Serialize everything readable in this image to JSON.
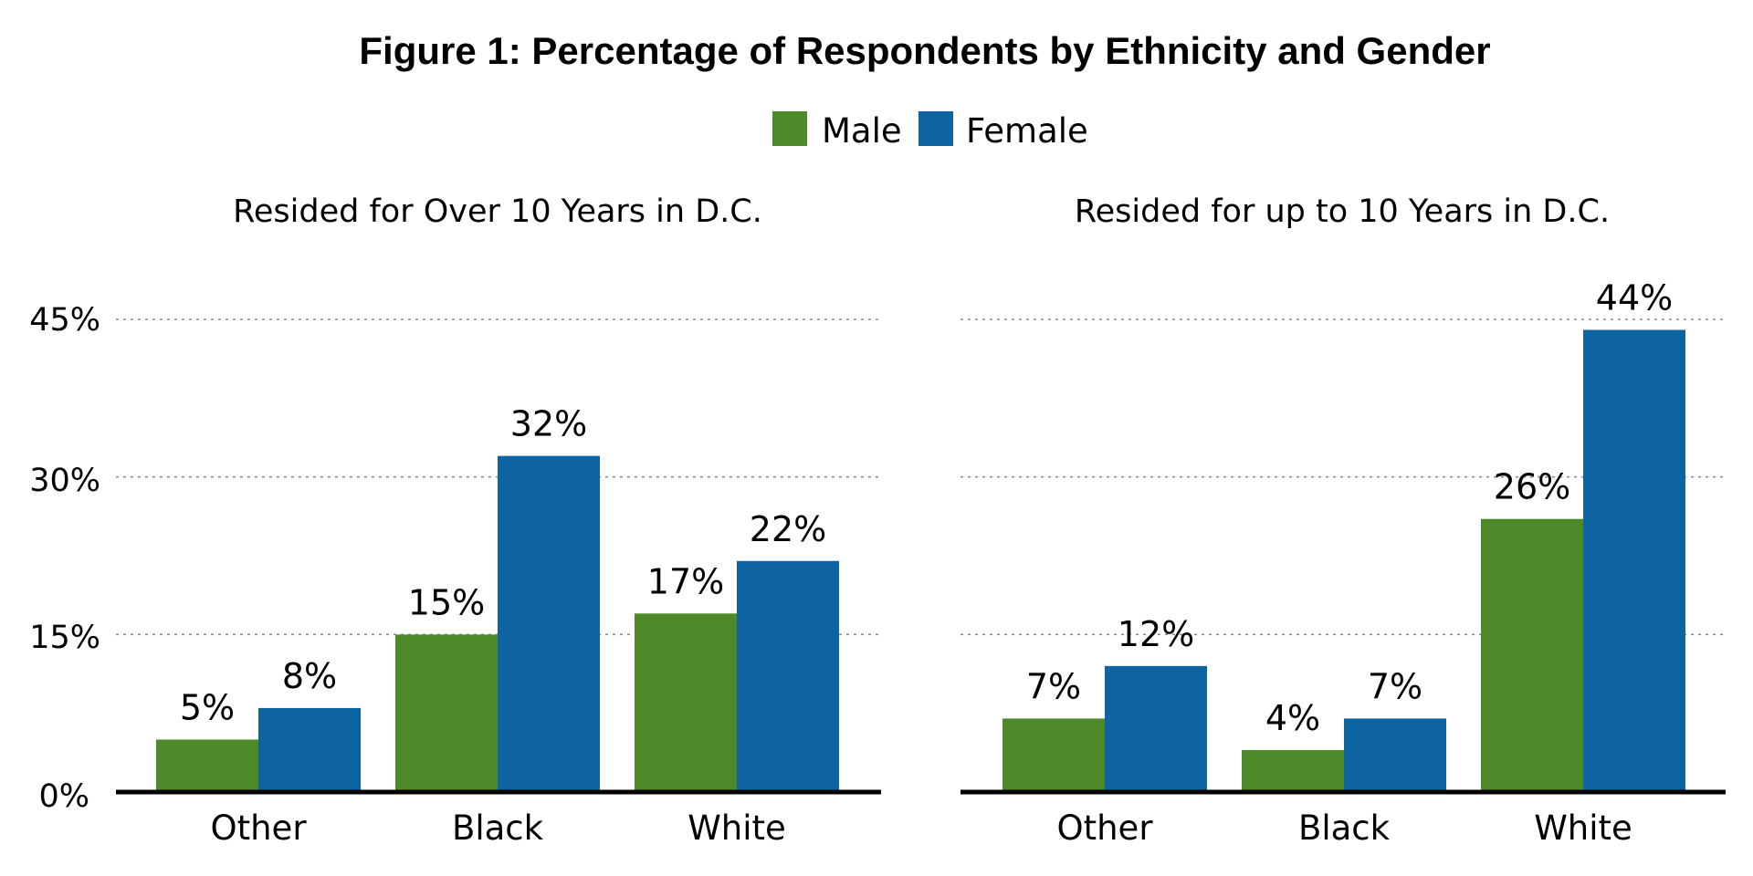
{
  "chart_data": {
    "type": "bar",
    "title": "Figure 1: Percentage of Respondents by Ethnicity and Gender",
    "legend": {
      "placement": "top-center",
      "entries": [
        {
          "name": "Male",
          "color": "#4f8a2a"
        },
        {
          "name": "Female",
          "color": "#0e64a0"
        }
      ]
    },
    "y_ticks": [
      "0%",
      "15%",
      "30%",
      "45%"
    ],
    "y_tick_values": [
      0,
      15,
      30,
      45
    ],
    "ylim": [
      0,
      45
    ],
    "grid": true,
    "panels": [
      {
        "title": "Resided for Over 10 Years in D.C.",
        "categories": [
          "Other",
          "Black",
          "White"
        ],
        "series": [
          {
            "name": "Male",
            "color": "#4f8a2a",
            "values": [
              5,
              15,
              17
            ],
            "labels": [
              "5%",
              "15%",
              "17%"
            ]
          },
          {
            "name": "Female",
            "color": "#0e64a0",
            "values": [
              8,
              32,
              22
            ],
            "labels": [
              "8%",
              "32%",
              "22%"
            ]
          }
        ]
      },
      {
        "title": "Resided for up to 10 Years in D.C.",
        "categories": [
          "Other",
          "Black",
          "White"
        ],
        "series": [
          {
            "name": "Male",
            "color": "#4f8a2a",
            "values": [
              7,
              4,
              26
            ],
            "labels": [
              "7%",
              "4%",
              "26%"
            ]
          },
          {
            "name": "Female",
            "color": "#0e64a0",
            "values": [
              12,
              7,
              44
            ],
            "labels": [
              "12%",
              "7%",
              "44%"
            ]
          }
        ]
      }
    ]
  }
}
